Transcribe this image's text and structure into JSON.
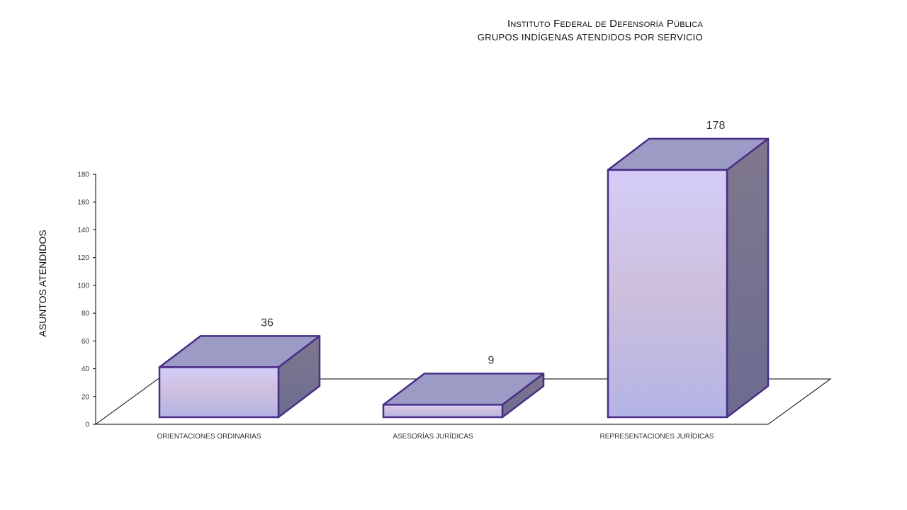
{
  "chart_data": {
    "type": "bar",
    "title": "Instituto Federal de Defensoría Pública",
    "subtitle": "GRUPOS INDÍGENAS ATENDIDOS  POR SERVICIO",
    "ylabel": "ASUNTOS ATENDIDOS",
    "xlabel": "",
    "categories": [
      "ORIENTACIONES ORDINARIAS",
      "ASESORÍAS JURÍDICAS",
      "REPRESENTACIONES JURÍDICAS"
    ],
    "values": [
      36,
      9,
      178
    ],
    "ylim": [
      0,
      180
    ],
    "yticks": [
      0,
      20,
      40,
      60,
      80,
      100,
      120,
      140,
      160,
      180
    ],
    "grid": false,
    "legend": "none",
    "style": "3d-column",
    "colors": {
      "front_top": "#d4cdf8",
      "front_mid": "#cdbfdc",
      "front_bottom": "#b4b4e6",
      "top_face": "#9b9bc5",
      "side_face": "#7f788e",
      "outline": "#4a2d86"
    }
  }
}
